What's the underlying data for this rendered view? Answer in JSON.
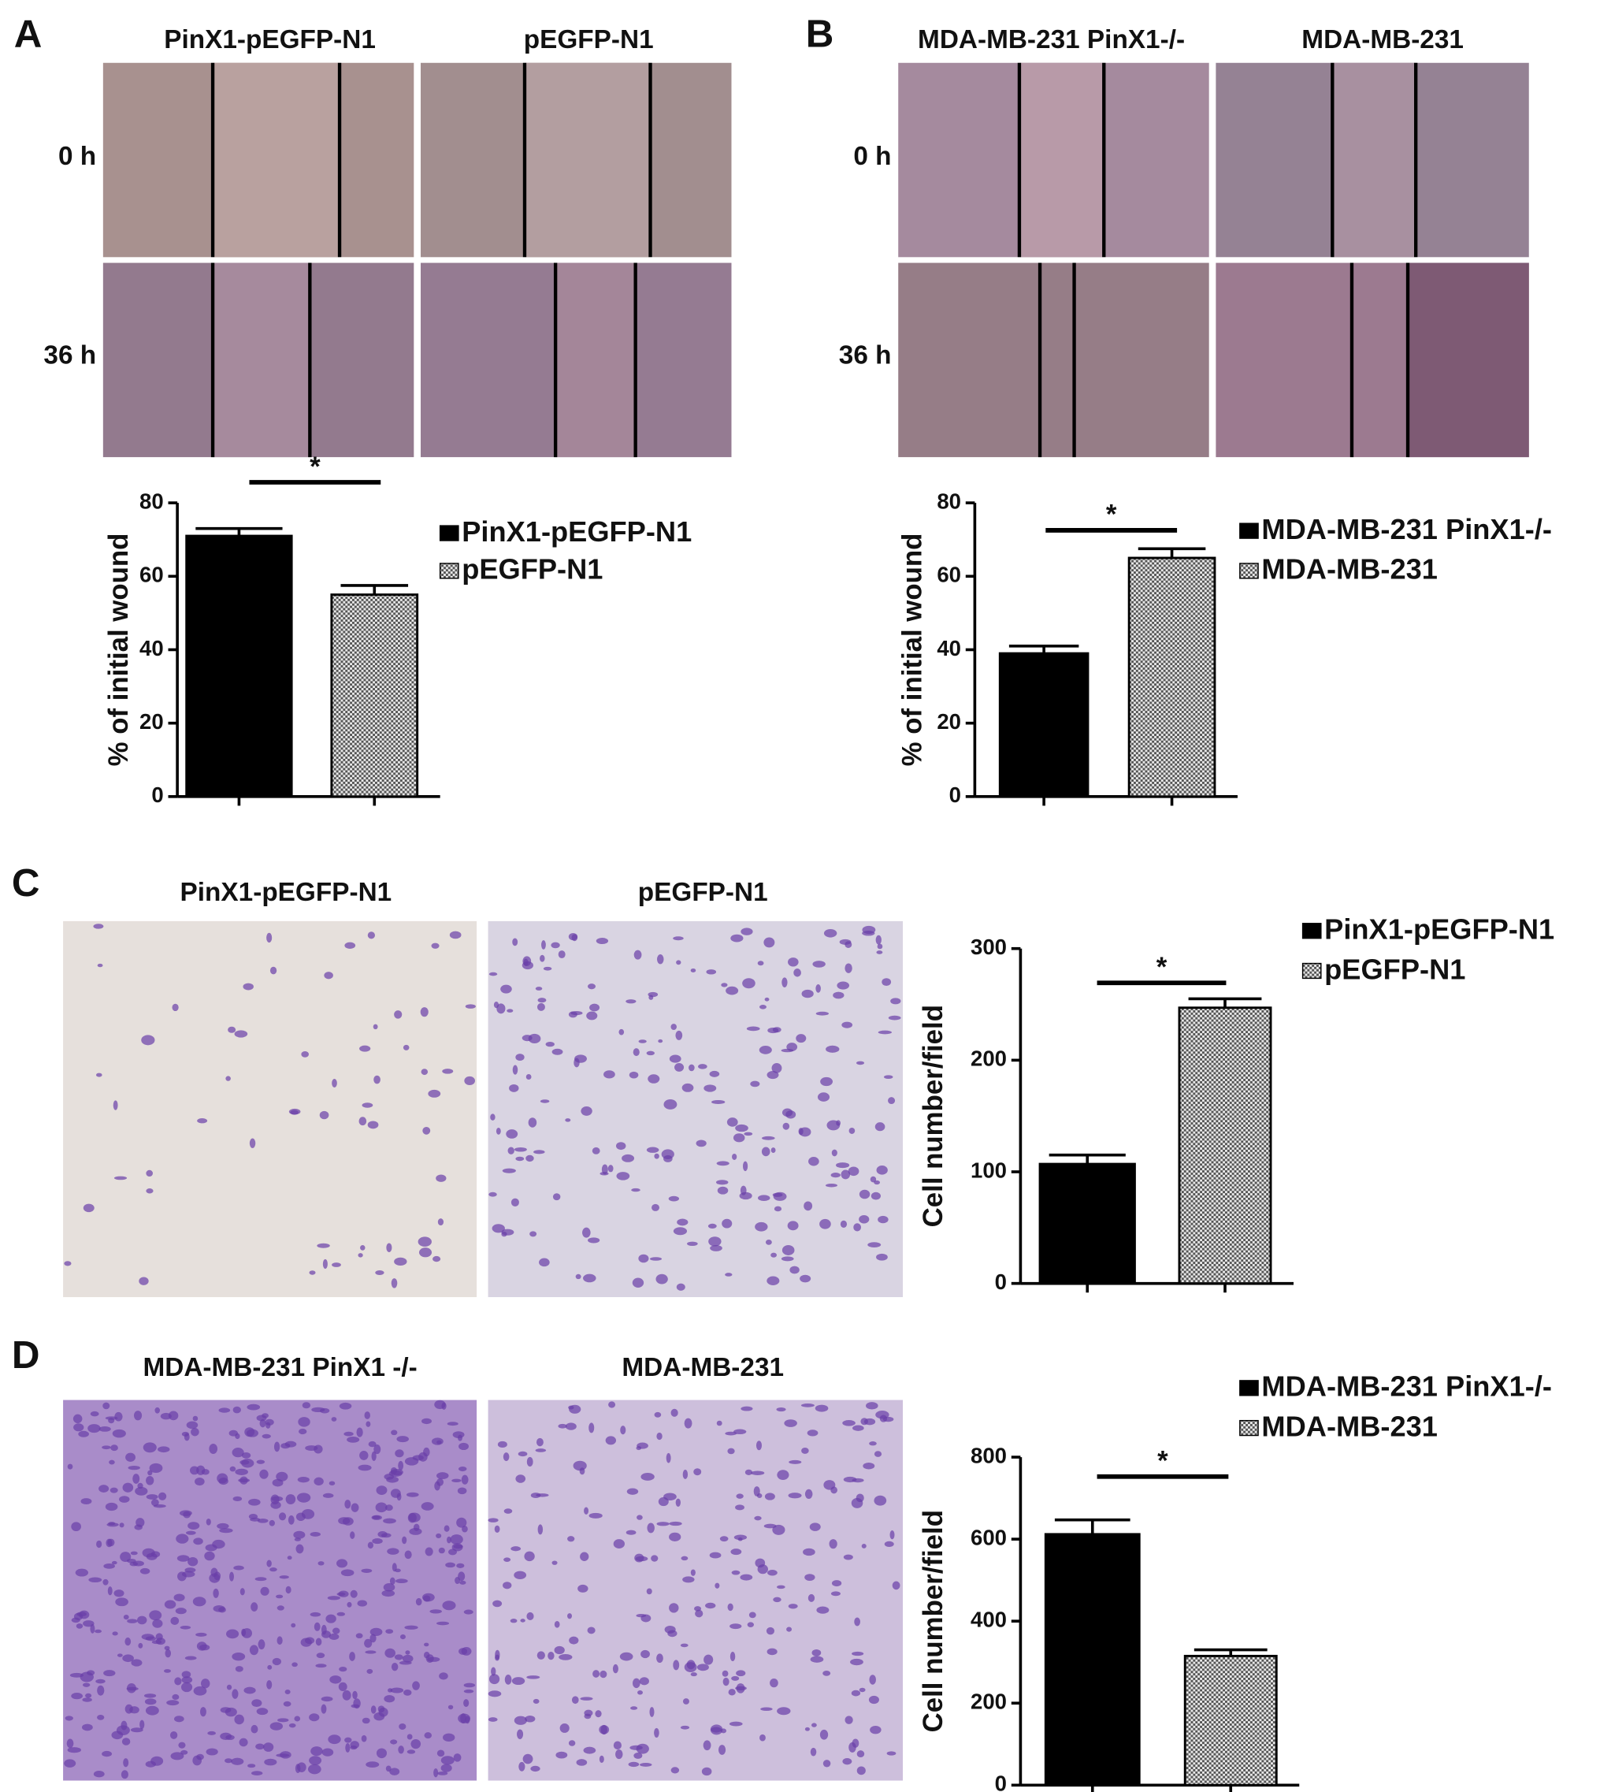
{
  "figure": {
    "panels": [
      {
        "label": "A",
        "columns": [
          "PinX1-pEGFP-N1",
          "pEGFP-N1"
        ],
        "rows": [
          "0 h",
          "36 h"
        ]
      },
      {
        "label": "B",
        "columns": [
          "MDA-MB-231 PinX1-/-",
          "MDA-MB-231"
        ],
        "rows": [
          "0 h",
          "36 h"
        ]
      },
      {
        "label": "C",
        "columns": [
          "PinX1-pEGFP-N1",
          "pEGFP-N1"
        ]
      },
      {
        "label": "D",
        "columns": [
          "MDA-MB-231 PinX1 -/-",
          "MDA-MB-231"
        ]
      }
    ]
  },
  "chart_data": [
    {
      "type": "bar",
      "ylabel": "% of initial wound",
      "ylim": [
        0,
        80
      ],
      "yticks": [
        0,
        20,
        40,
        60,
        80
      ],
      "annotation": "*",
      "series": [
        {
          "name": "PinX1-pEGFP-N1",
          "color": "#000000",
          "values": [
            71
          ],
          "errors": [
            2
          ]
        },
        {
          "name": "pEGFP-N1",
          "color": "#b0b0b0",
          "hatch": "checkerboard",
          "values": [
            55
          ],
          "errors": [
            2.5
          ]
        }
      ]
    },
    {
      "type": "bar",
      "ylabel": "% of initial wound",
      "ylim": [
        0,
        80
      ],
      "yticks": [
        0,
        20,
        40,
        60,
        80
      ],
      "annotation": "*",
      "series": [
        {
          "name": "MDA-MB-231 PinX1-/-",
          "color": "#000000",
          "values": [
            39
          ],
          "errors": [
            2
          ]
        },
        {
          "name": "MDA-MB-231",
          "color": "#b0b0b0",
          "hatch": "checkerboard",
          "values": [
            65
          ],
          "errors": [
            2.5
          ]
        }
      ]
    },
    {
      "type": "bar",
      "ylabel": "Cell number/field",
      "ylim": [
        0,
        300
      ],
      "yticks": [
        0,
        100,
        200,
        300
      ],
      "annotation": "*",
      "series": [
        {
          "name": "PinX1-pEGFP-N1",
          "color": "#000000",
          "values": [
            107
          ],
          "errors": [
            8
          ]
        },
        {
          "name": "pEGFP-N1",
          "color": "#b0b0b0",
          "hatch": "checkerboard",
          "values": [
            247
          ],
          "errors": [
            8
          ]
        }
      ]
    },
    {
      "type": "bar",
      "ylabel": "Cell number/field",
      "ylim": [
        0,
        800
      ],
      "yticks": [
        0,
        200,
        400,
        600,
        800
      ],
      "annotation": "*",
      "series": [
        {
          "name": "MDA-MB-231 PinX1-/-",
          "color": "#000000",
          "values": [
            612
          ],
          "errors": [
            35
          ]
        },
        {
          "name": "MDA-MB-231",
          "color": "#b0b0b0",
          "hatch": "checkerboard",
          "values": [
            315
          ],
          "errors": [
            15
          ]
        }
      ]
    }
  ]
}
